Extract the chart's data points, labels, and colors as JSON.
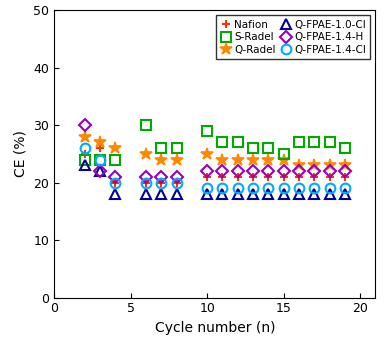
{
  "title": "",
  "xlabel": "Cycle number (n)",
  "ylabel": "CE (%)",
  "xlim": [
    0,
    21
  ],
  "ylim": [
    0,
    50
  ],
  "xticks": [
    0,
    5,
    10,
    15,
    20
  ],
  "yticks": [
    0,
    10,
    20,
    30,
    40,
    50
  ],
  "series": [
    {
      "label": "Nafion",
      "color": "#ff3300",
      "marker": "+",
      "markersize": 6,
      "markeredgewidth": 1.5,
      "filled": false,
      "x": [
        2,
        3,
        4,
        6,
        7,
        8,
        10,
        11,
        12,
        13,
        14,
        15,
        16,
        17,
        18,
        19
      ],
      "y": [
        25,
        26,
        20,
        20,
        20,
        20,
        21,
        21,
        21,
        21,
        21,
        21,
        21,
        21,
        21,
        21
      ]
    },
    {
      "label": "Q-Radel",
      "color": "#ff8800",
      "marker": "*",
      "markersize": 9,
      "markeredgewidth": 1.2,
      "filled": true,
      "x": [
        2,
        3,
        4,
        6,
        7,
        8,
        10,
        11,
        12,
        13,
        14,
        15,
        16,
        17,
        18,
        19
      ],
      "y": [
        28,
        27,
        26,
        25,
        24,
        24,
        25,
        24,
        24,
        24,
        24,
        24,
        23,
        23,
        23,
        23
      ]
    },
    {
      "label": "S-Radel",
      "color": "#00aa00",
      "marker": "s",
      "markersize": 7,
      "markeredgewidth": 1.5,
      "filled": false,
      "x": [
        2,
        3,
        4,
        6,
        7,
        8,
        10,
        11,
        12,
        13,
        14,
        15,
        16,
        17,
        18,
        19
      ],
      "y": [
        24,
        24,
        24,
        30,
        26,
        26,
        29,
        27,
        27,
        26,
        26,
        25,
        27,
        27,
        27,
        26
      ]
    },
    {
      "label": "Q-FPAE-1.0-Cl",
      "color": "#000099",
      "marker": "^",
      "markersize": 7,
      "markeredgewidth": 1.5,
      "filled": false,
      "x": [
        2,
        3,
        4,
        6,
        7,
        8,
        10,
        11,
        12,
        13,
        14,
        15,
        16,
        17,
        18,
        19
      ],
      "y": [
        23,
        22,
        18,
        18,
        18,
        18,
        18,
        18,
        18,
        18,
        18,
        18,
        18,
        18,
        18,
        18
      ]
    },
    {
      "label": "Q-FPAE-1.4-H",
      "color": "#9900bb",
      "marker": "D",
      "markersize": 6,
      "markeredgewidth": 1.5,
      "filled": false,
      "x": [
        2,
        3,
        4,
        6,
        7,
        8,
        10,
        11,
        12,
        13,
        14,
        15,
        16,
        17,
        18,
        19
      ],
      "y": [
        30,
        22,
        21,
        21,
        21,
        21,
        22,
        22,
        22,
        22,
        22,
        22,
        22,
        22,
        22,
        22
      ]
    },
    {
      "label": "Q-FPAE-1.4-Cl",
      "color": "#00aaff",
      "marker": "o",
      "markersize": 7,
      "markeredgewidth": 1.5,
      "filled": false,
      "x": [
        2,
        3,
        4,
        6,
        7,
        8,
        10,
        11,
        12,
        13,
        14,
        15,
        16,
        17,
        18,
        19
      ],
      "y": [
        26,
        24,
        20,
        20,
        20,
        20,
        19,
        19,
        19,
        19,
        19,
        19,
        19,
        19,
        19,
        19
      ]
    }
  ],
  "legend_order": [
    0,
    2,
    1,
    3,
    4,
    5
  ],
  "figsize": [
    3.87,
    3.42
  ],
  "dpi": 100
}
